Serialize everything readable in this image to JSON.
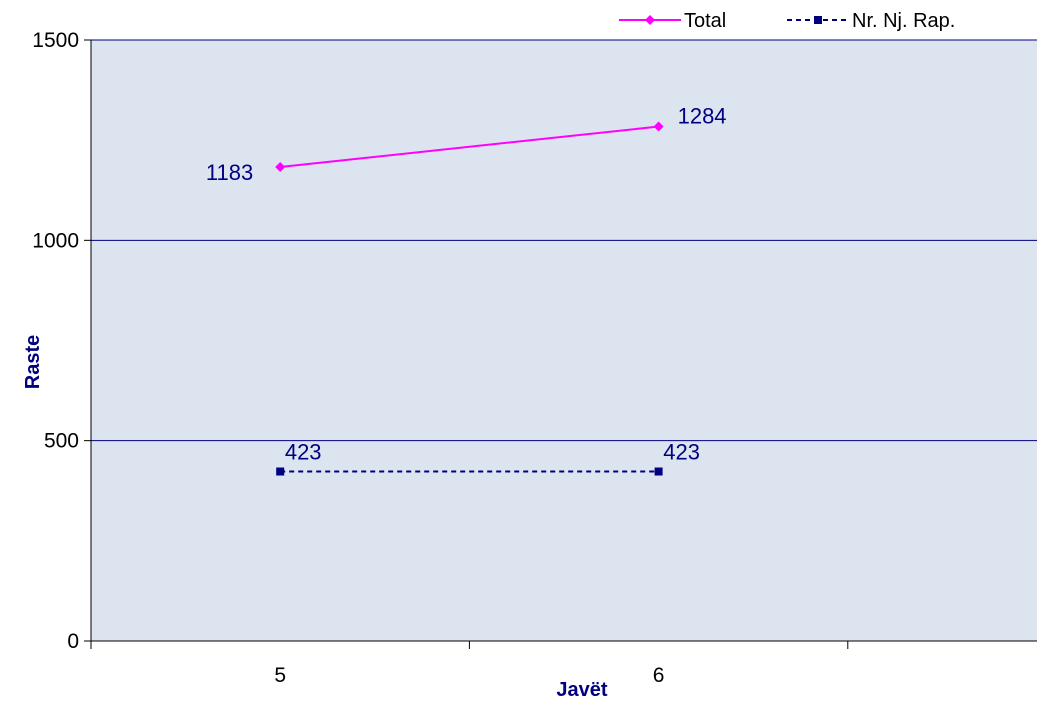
{
  "chart_data": {
    "type": "line",
    "categories": [
      "5",
      "6"
    ],
    "series": [
      {
        "name": "Total",
        "values": [
          1183,
          1284
        ],
        "color": "#ff00ff",
        "line_style": "solid",
        "marker": "diamond"
      },
      {
        "name": "Nr. Nj. Rap.",
        "values": [
          423,
          423
        ],
        "color": "#000080",
        "line_style": "dashed",
        "marker": "square"
      }
    ],
    "xlabel": "Javët",
    "ylabel": "Raste",
    "ylim": [
      0,
      1500
    ],
    "yticks": [
      "0",
      "500",
      "1000",
      "1500"
    ],
    "grid": true,
    "legend_position": "top-right",
    "plot_background": "#dce4ef",
    "gridline_color": "#000080"
  }
}
